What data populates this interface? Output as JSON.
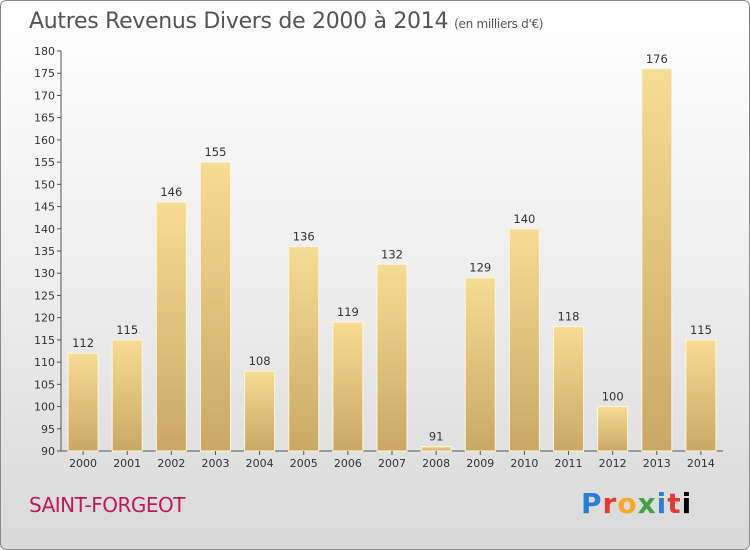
{
  "title": "Autres Revenus Divers de 2000 à 2014",
  "subtitle": "(en milliers d'€)",
  "location": "SAINT-FORGEOT",
  "logo_text": "Proxiti",
  "colors": {
    "bar_fill_top": "#f7dc95",
    "bar_fill_bottom": "#c9a865",
    "location_text": "#c2185b",
    "title_text": "#555555"
  },
  "chart_data": {
    "type": "bar",
    "title": "Autres Revenus Divers de 2000 à 2014",
    "subtitle": "(en milliers d'€)",
    "categories": [
      "2000",
      "2001",
      "2002",
      "2003",
      "2004",
      "2005",
      "2006",
      "2007",
      "2008",
      "2009",
      "2010",
      "2011",
      "2012",
      "2013",
      "2014"
    ],
    "values": [
      112,
      115,
      146,
      155,
      108,
      136,
      119,
      132,
      91,
      129,
      140,
      118,
      100,
      176,
      115
    ],
    "ylim": [
      90,
      180
    ],
    "yticks": [
      90,
      95,
      100,
      105,
      110,
      115,
      120,
      125,
      130,
      135,
      140,
      145,
      150,
      155,
      160,
      165,
      170,
      175,
      180
    ],
    "grid": false,
    "legend": "none"
  }
}
